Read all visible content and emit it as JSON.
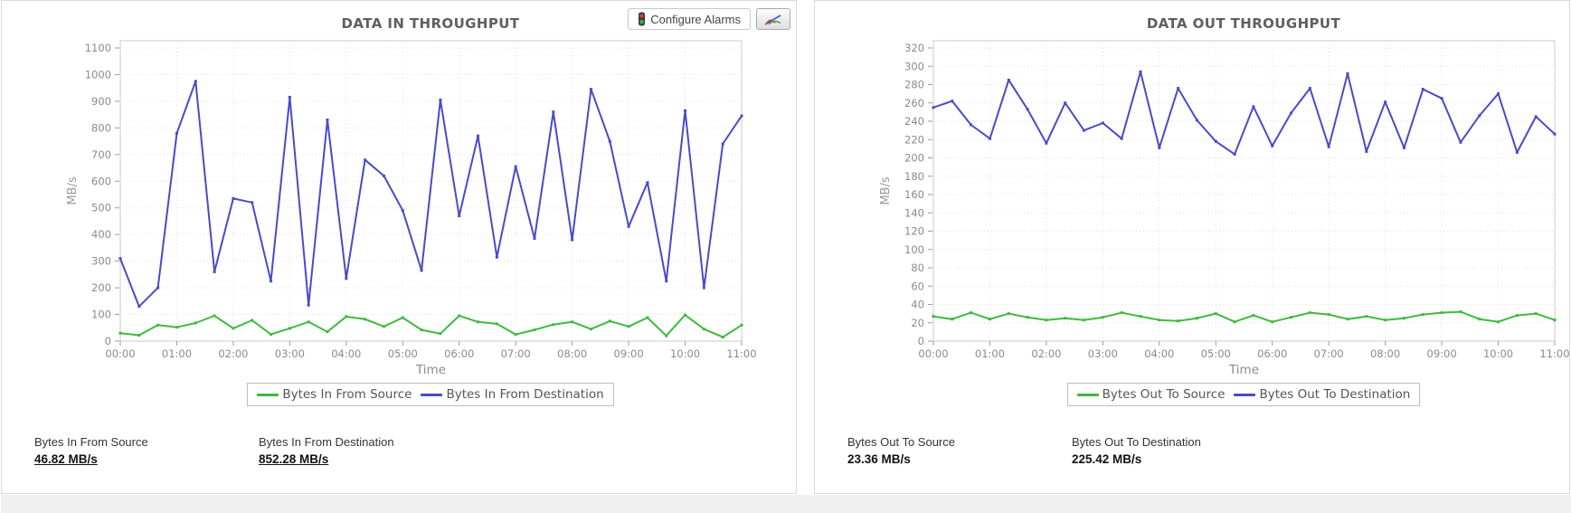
{
  "toolbar": {
    "configure_alarms_label": "Configure Alarms",
    "alarm_icon": "traffic-light-icon",
    "chart_button_icon": "line-chart-icon"
  },
  "colors": {
    "source_series": "#3eba3e",
    "destination_series": "#4a4ac9",
    "grid": "#dddddd",
    "axis_text": "#8a8a8a",
    "title_text": "#5f5f5f"
  },
  "chart_data": [
    {
      "type": "line",
      "title": "DATA IN THROUGHPUT",
      "xlabel": "Time",
      "ylabel": "MB/s",
      "grid": true,
      "legend_position": "bottom",
      "ylim": [
        0,
        1100
      ],
      "ytick_labels": [
        "0",
        "100",
        "200",
        "300",
        "400",
        "500",
        "600",
        "700",
        "800",
        "900",
        "1000",
        "1100"
      ],
      "x_tick_labels": [
        "00:00",
        "01:00",
        "02:00",
        "03:00",
        "04:00",
        "05:00",
        "06:00",
        "07:00",
        "08:00",
        "09:00",
        "10:00",
        "11:00"
      ],
      "x_start": "00:00",
      "x_interval_minutes": 20,
      "series": [
        {
          "name": "Bytes In From Source",
          "color": "#3eba3e",
          "values": [
            30,
            22,
            60,
            52,
            68,
            95,
            48,
            78,
            25,
            48,
            72,
            35,
            92,
            82,
            55,
            88,
            42,
            28,
            95,
            72,
            65,
            25,
            42,
            62,
            72,
            45,
            75,
            55,
            88,
            20,
            98,
            45,
            15,
            60
          ]
        },
        {
          "name": "Bytes In From Destination",
          "color": "#4a4ac9",
          "values": [
            310,
            130,
            200,
            780,
            975,
            260,
            535,
            520,
            225,
            915,
            135,
            830,
            235,
            680,
            620,
            490,
            265,
            905,
            470,
            770,
            315,
            655,
            385,
            860,
            380,
            945,
            750,
            430,
            595,
            225,
            865,
            200,
            740,
            845
          ]
        }
      ]
    },
    {
      "type": "line",
      "title": "DATA OUT THROUGHPUT",
      "xlabel": "Time",
      "ylabel": "MB/s",
      "grid": true,
      "legend_position": "bottom",
      "ylim": [
        0,
        320
      ],
      "ytick_labels": [
        "0",
        "20",
        "40",
        "60",
        "80",
        "100",
        "120",
        "140",
        "160",
        "180",
        "200",
        "220",
        "240",
        "260",
        "280",
        "300",
        "320"
      ],
      "x_tick_labels": [
        "00:00",
        "01:00",
        "02:00",
        "03:00",
        "04:00",
        "05:00",
        "06:00",
        "07:00",
        "08:00",
        "09:00",
        "10:00",
        "11:00"
      ],
      "x_start": "00:00",
      "x_interval_minutes": 20,
      "series": [
        {
          "name": "Bytes Out To Source",
          "color": "#3eba3e",
          "values": [
            27,
            24,
            31,
            24,
            30,
            26,
            23,
            25,
            23,
            26,
            31,
            27,
            23,
            22,
            25,
            30,
            21,
            28,
            21,
            26,
            31,
            29,
            24,
            27,
            23,
            25,
            29,
            31,
            32,
            24,
            21,
            28,
            30,
            23
          ]
        },
        {
          "name": "Bytes Out To Destination",
          "color": "#4a4ac9",
          "values": [
            255,
            262,
            236,
            221,
            285,
            253,
            216,
            260,
            230,
            238,
            221,
            294,
            211,
            276,
            241,
            218,
            204,
            256,
            213,
            249,
            276,
            212,
            292,
            207,
            261,
            211,
            275,
            265,
            217,
            246,
            270,
            206,
            245,
            226
          ]
        }
      ]
    }
  ],
  "panels": [
    {
      "name": "data-in",
      "stats": [
        {
          "label": "Bytes In From Source",
          "value": "46.82 MB/s",
          "underlined": true
        },
        {
          "label": "Bytes In From Destination",
          "value": "852.28 MB/s",
          "underlined": true
        }
      ]
    },
    {
      "name": "data-out",
      "stats": [
        {
          "label": "Bytes Out To Source",
          "value": "23.36 MB/s",
          "underlined": false
        },
        {
          "label": "Bytes Out To Destination",
          "value": "225.42 MB/s",
          "underlined": false
        }
      ]
    }
  ]
}
